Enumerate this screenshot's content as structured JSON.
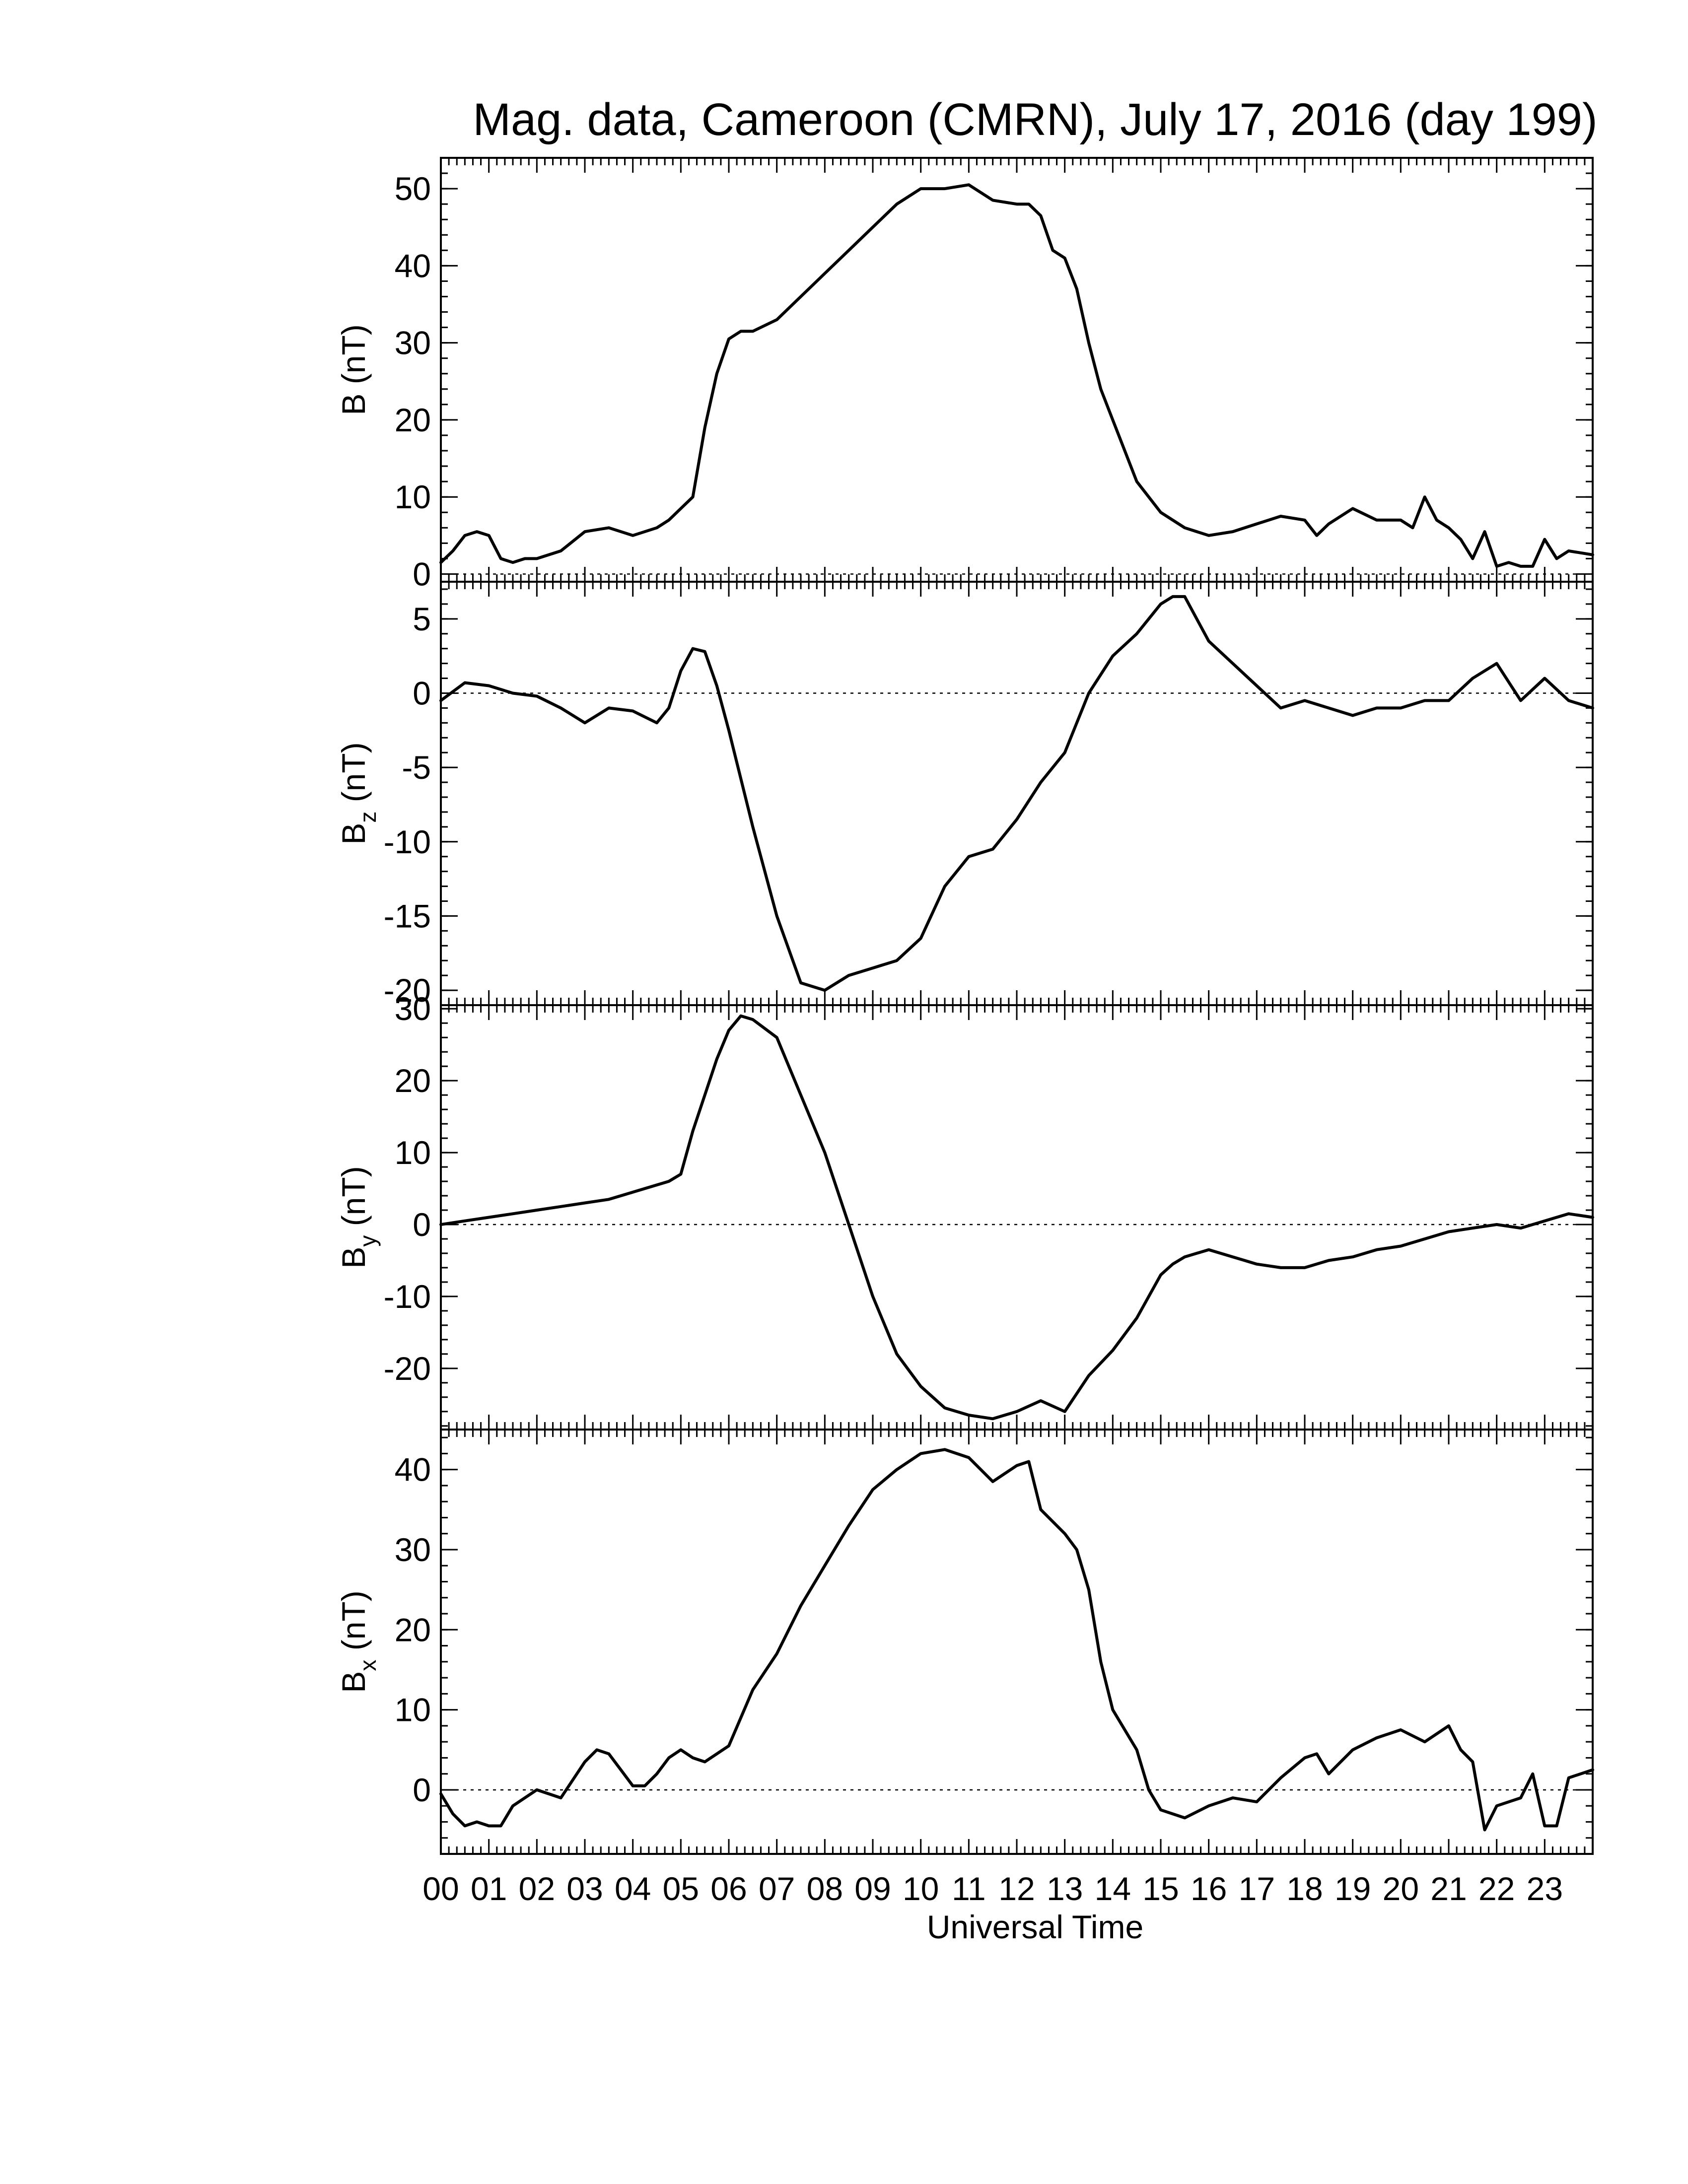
{
  "chart_data": {
    "type": "line",
    "title": "Mag. data, Cameroon (CMRN), July 17, 2016 (day 199)",
    "xlabel": "Universal Time",
    "x_unit": "hour (UT)",
    "xlim": [
      0,
      24
    ],
    "x_tick_labels": [
      "00",
      "01",
      "02",
      "03",
      "04",
      "05",
      "06",
      "07",
      "08",
      "09",
      "10",
      "11",
      "12",
      "13",
      "14",
      "15",
      "16",
      "17",
      "18",
      "19",
      "20",
      "21",
      "22",
      "23"
    ],
    "x_tick_values": [
      0,
      1,
      2,
      3,
      4,
      5,
      6,
      7,
      8,
      9,
      10,
      11,
      12,
      13,
      14,
      15,
      16,
      17,
      18,
      19,
      20,
      21,
      22,
      23
    ],
    "zero_reference_line": "dotted",
    "panels": [
      {
        "id": "B",
        "ylabel": "B (nT)",
        "ylabel_main": "B",
        "ylabel_sub": "",
        "ylabel_unit": "(nT)",
        "ylim": [
          -1,
          54
        ],
        "yticks": [
          0,
          10,
          20,
          30,
          40,
          50
        ],
        "x": [
          0,
          0.25,
          0.5,
          0.75,
          1,
          1.25,
          1.5,
          1.75,
          2,
          2.5,
          3,
          3.5,
          4,
          4.5,
          4.75,
          5,
          5.25,
          5.5,
          5.75,
          6,
          6.25,
          6.5,
          7,
          7.5,
          8,
          8.5,
          9,
          9.5,
          10,
          10.5,
          11,
          11.5,
          12,
          12.25,
          12.5,
          12.75,
          13,
          13.25,
          13.5,
          13.75,
          14,
          14.5,
          15,
          15.5,
          16,
          16.5,
          17,
          17.5,
          18,
          18.25,
          18.5,
          19,
          19.5,
          20,
          20.25,
          20.5,
          20.75,
          21,
          21.25,
          21.5,
          21.75,
          22,
          22.25,
          22.5,
          22.75,
          23,
          23.25,
          23.5,
          24
        ],
        "y": [
          1.5,
          3,
          5,
          5.5,
          5,
          2,
          1.5,
          2,
          2,
          3,
          5.5,
          6,
          5,
          6,
          7,
          8.5,
          10,
          19,
          26,
          30.5,
          31.5,
          31.5,
          33,
          36,
          39,
          42,
          45,
          48,
          50,
          50,
          50.5,
          48.5,
          48,
          48,
          46.5,
          42,
          41,
          37,
          30,
          24,
          20,
          12,
          8,
          6,
          5,
          5.5,
          6.5,
          7.5,
          7,
          5,
          6.5,
          8.5,
          7,
          7,
          6,
          10,
          7,
          6,
          4.5,
          2,
          5.5,
          1,
          1.5,
          1,
          1,
          4.5,
          2,
          3,
          2.5
        ]
      },
      {
        "id": "Bz",
        "ylabel": "Bz (nT)",
        "ylabel_main": "B",
        "ylabel_sub": "z",
        "ylabel_unit": "(nT)",
        "ylim": [
          -21,
          7.5
        ],
        "yticks": [
          5,
          0,
          -5,
          -10,
          -15,
          -20
        ],
        "x": [
          0,
          0.5,
          1,
          1.5,
          2,
          2.5,
          3,
          3.5,
          4,
          4.5,
          4.75,
          5,
          5.25,
          5.5,
          5.75,
          6,
          6.5,
          7,
          7.5,
          8,
          8.5,
          9,
          9.5,
          10,
          10.5,
          11,
          11.5,
          12,
          12.5,
          13,
          13.5,
          14,
          14.5,
          15,
          15.25,
          15.5,
          16,
          16.5,
          17,
          17.5,
          18,
          18.5,
          19,
          19.5,
          20,
          20.5,
          21,
          21.5,
          22,
          22.5,
          23,
          23.5,
          24
        ],
        "y": [
          -0.5,
          0.7,
          0.5,
          0,
          -0.2,
          -1,
          -2,
          -1,
          -1.2,
          -2,
          -1,
          1.5,
          3,
          2.8,
          0.5,
          -2.5,
          -9,
          -15,
          -19.5,
          -20,
          -19,
          -18.5,
          -18,
          -16.5,
          -13,
          -11,
          -10.5,
          -8.5,
          -6,
          -4,
          0,
          2.5,
          4,
          6,
          6.5,
          6.5,
          3.5,
          2,
          0.5,
          -1,
          -0.5,
          -1,
          -1.5,
          -1,
          -1,
          -0.5,
          -0.5,
          1,
          2,
          -0.5,
          1,
          -0.5,
          -1
        ]
      },
      {
        "id": "By",
        "ylabel": "By (nT)",
        "ylabel_main": "B",
        "ylabel_sub": "y",
        "ylabel_unit": "(nT)",
        "ylim": [
          -28.5,
          30.5
        ],
        "yticks": [
          30,
          20,
          10,
          0,
          -10,
          -20
        ],
        "x": [
          0,
          0.5,
          1,
          1.5,
          2,
          2.5,
          3,
          3.5,
          4,
          4.5,
          4.75,
          5,
          5.25,
          5.5,
          5.75,
          6,
          6.25,
          6.5,
          7,
          7.5,
          8,
          8.5,
          9,
          9.5,
          10,
          10.5,
          11,
          11.5,
          12,
          12.5,
          13,
          13.5,
          14,
          14.5,
          15,
          15.25,
          15.5,
          16,
          16.5,
          17,
          17.5,
          18,
          18.5,
          19,
          19.5,
          20,
          20.5,
          21,
          21.5,
          22,
          22.5,
          23,
          23.5,
          24
        ],
        "y": [
          0,
          0.5,
          1,
          1.5,
          2,
          2.5,
          3,
          3.5,
          4.5,
          5.5,
          6,
          7,
          13,
          18,
          23,
          27,
          29,
          28.5,
          26,
          18,
          10,
          0,
          -10,
          -18,
          -22.5,
          -25.5,
          -26.5,
          -27,
          -26,
          -24.5,
          -26,
          -21,
          -17.5,
          -13,
          -7,
          -5.5,
          -4.5,
          -3.5,
          -4.5,
          -5.5,
          -6,
          -6,
          -5,
          -4.5,
          -3.5,
          -3,
          -2,
          -1,
          -0.5,
          0,
          -0.5,
          0.5,
          1.5,
          1
        ]
      },
      {
        "id": "Bx",
        "ylabel": "Bx (nT)",
        "ylabel_main": "B",
        "ylabel_sub": "x",
        "ylabel_unit": "(nT)",
        "ylim": [
          -8,
          45
        ],
        "yticks": [
          40,
          30,
          20,
          10,
          0
        ],
        "x": [
          0,
          0.25,
          0.5,
          0.75,
          1,
          1.25,
          1.5,
          2,
          2.5,
          3,
          3.25,
          3.5,
          3.75,
          4,
          4.25,
          4.5,
          4.75,
          5,
          5.25,
          5.5,
          6,
          6.5,
          7,
          7.5,
          8,
          8.5,
          9,
          9.5,
          10,
          10.5,
          11,
          11.5,
          12,
          12.25,
          12.5,
          13,
          13.25,
          13.5,
          13.75,
          14,
          14.5,
          14.75,
          15,
          15.5,
          16,
          16.5,
          17,
          17.5,
          18,
          18.25,
          18.5,
          18.75,
          19,
          19.5,
          20,
          20.5,
          21,
          21.25,
          21.5,
          21.75,
          22,
          22.5,
          22.75,
          23,
          23.25,
          23.5,
          24
        ],
        "y": [
          -0.5,
          -3,
          -4.5,
          -4,
          -4.5,
          -4.5,
          -2,
          0,
          -1,
          3.5,
          5,
          4.5,
          2.5,
          0.5,
          0.5,
          2,
          4,
          5,
          4,
          3.5,
          5.5,
          12.5,
          17,
          23,
          28,
          33,
          37.5,
          40,
          42,
          42.5,
          41.5,
          38.5,
          40.5,
          41,
          35,
          32,
          30,
          25,
          16,
          10,
          5,
          0,
          -2.5,
          -3.5,
          -2,
          -1,
          -1.5,
          1.5,
          4,
          4.5,
          2,
          3.5,
          5,
          6.5,
          7.5,
          6,
          8,
          5,
          3.5,
          -5,
          -2,
          -1,
          2,
          -4.5,
          -4.5,
          1.5,
          2.5
        ]
      }
    ]
  }
}
